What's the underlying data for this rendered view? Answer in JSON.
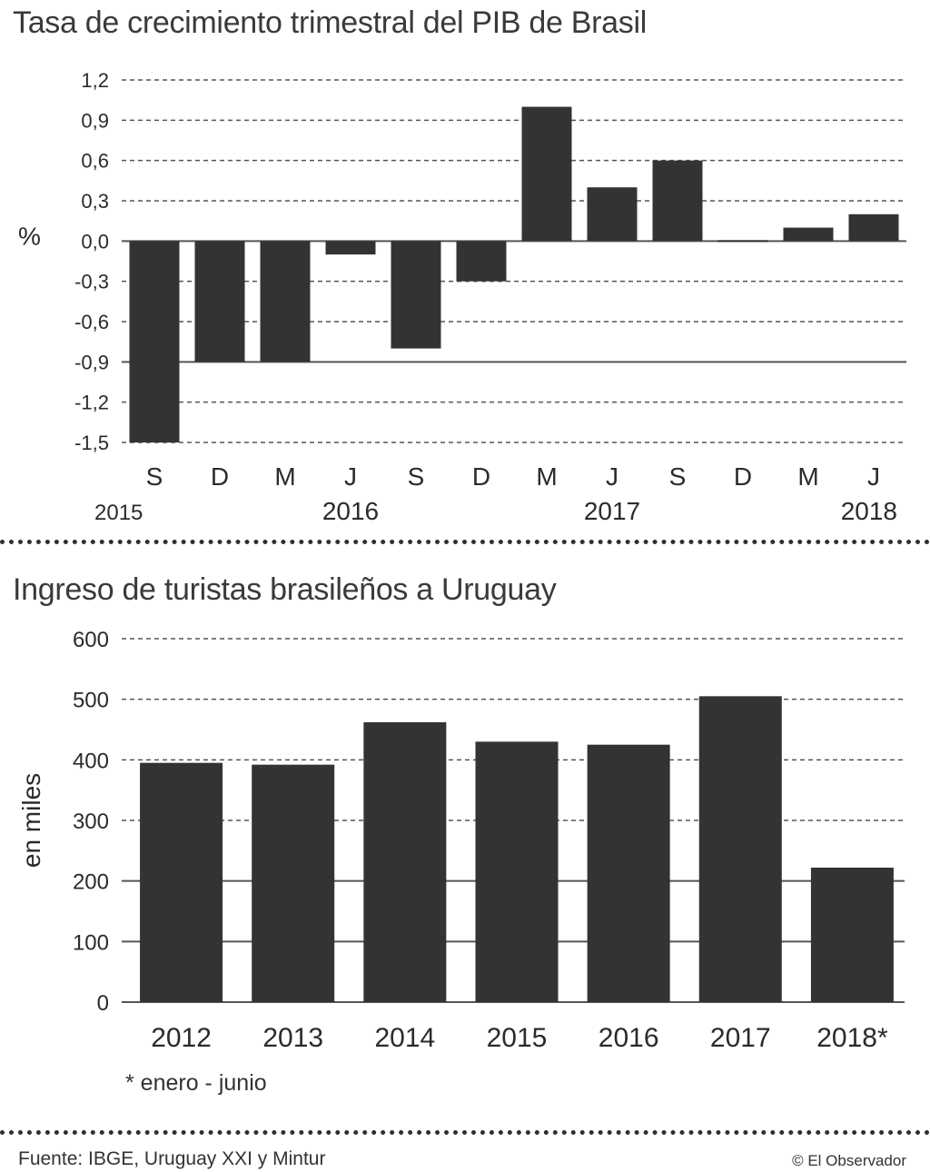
{
  "chart_data": [
    {
      "type": "bar",
      "title": "Tasa de crecimiento trimestral del PIB de Brasil",
      "ylabel": "%",
      "ylim": [
        -1.5,
        1.2
      ],
      "yticks": [
        "1,2",
        "0,9",
        "0,6",
        "0,3",
        "0,0",
        "-0,3",
        "-0,6",
        "-0,9",
        "-1,2",
        "-1,5"
      ],
      "ytick_values": [
        1.2,
        0.9,
        0.6,
        0.3,
        0.0,
        -0.3,
        -0.6,
        -0.9,
        -1.2,
        -1.5
      ],
      "categories": [
        "S",
        "D",
        "M",
        "J",
        "S",
        "D",
        "M",
        "J",
        "S",
        "D",
        "M",
        "J"
      ],
      "values": [
        -1.5,
        -0.9,
        -0.9,
        -0.1,
        -0.8,
        -0.3,
        1.0,
        0.4,
        0.6,
        0.0,
        0.1,
        0.2
      ],
      "year_labels": [
        "2015",
        "2016",
        "2017",
        "2018"
      ],
      "year_label_index": [
        0,
        3,
        7,
        11
      ]
    },
    {
      "type": "bar",
      "title": "Ingreso de turistas brasileños a Uruguay",
      "ylabel": "en miles",
      "ylim": [
        0,
        600
      ],
      "yticks": [
        "600",
        "500",
        "400",
        "300",
        "200",
        "100",
        "0"
      ],
      "ytick_values": [
        600,
        500,
        400,
        300,
        200,
        100,
        0
      ],
      "categories": [
        "2012",
        "2013",
        "2014",
        "2015",
        "2016",
        "2017",
        "2018*"
      ],
      "values": [
        395,
        392,
        462,
        430,
        425,
        505,
        222
      ]
    }
  ],
  "footnote": "* enero - junio",
  "source": "Fuente: IBGE, Uruguay XXI y Mintur",
  "credit": "© El Observador",
  "colors": {
    "bar": "#333333",
    "grid": "#555555",
    "text": "#2b2b2b"
  }
}
